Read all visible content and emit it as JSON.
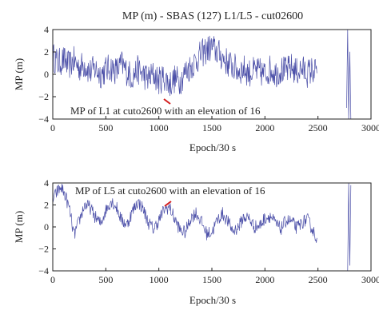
{
  "chart_data": [
    {
      "type": "line",
      "title": "MP (m) - SBAS (127) L1/L5 - cut02600",
      "xlabel": "Epoch/30 s",
      "ylabel": "MP (m)",
      "xlim": [
        0,
        3000
      ],
      "ylim": [
        -4,
        4
      ],
      "xticks": [
        "0",
        "500",
        "1000",
        "1500",
        "2000",
        "2500",
        "3000"
      ],
      "yticks": [
        "4",
        "2",
        "0",
        "−2",
        "−4"
      ],
      "grid": false,
      "annotation": "MP of L1 at cuto2600 with an elevation of 16",
      "series": [
        {
          "name": "",
          "color": "#4b4fa8",
          "x": [
            0,
            50,
            100,
            150,
            200,
            250,
            300,
            350,
            400,
            450,
            500,
            550,
            600,
            650,
            700,
            750,
            800,
            850,
            900,
            950,
            1000,
            1050,
            1100,
            1150,
            1200,
            1250,
            1300,
            1350,
            1400,
            1450,
            1500,
            1550,
            1600,
            1650,
            1700,
            1750,
            1800,
            1850,
            1900,
            1950,
            2000,
            2050,
            2100,
            2150,
            2200,
            2250,
            2300,
            2350,
            2400,
            2450,
            2490
          ],
          "y": [
            1.6,
            1.0,
            1.3,
            0.8,
            1.2,
            0.6,
            0.9,
            0.2,
            0.5,
            0.0,
            0.4,
            0.6,
            0.3,
            0.9,
            0.2,
            -0.2,
            0.4,
            0.0,
            -0.4,
            0.0,
            -0.6,
            -0.2,
            -0.9,
            -0.4,
            -0.6,
            0.2,
            0.7,
            1.2,
            1.8,
            2.2,
            2.4,
            2.0,
            1.5,
            1.0,
            0.7,
            0.3,
            0.5,
            0.1,
            0.3,
            0.2,
            0.0,
            0.5,
            0.1,
            0.4,
            0.3,
            0.6,
            0.2,
            0.5,
            0.1,
            0.4,
            0.1
          ],
          "spread": 1.3
        },
        {
          "name": "",
          "color": "#4b4fa8",
          "x": [
            2770,
            2780,
            2790,
            2800,
            2810
          ],
          "y": [
            -3.0,
            4.0,
            -4.0,
            2.0,
            -4.0
          ],
          "spread": 0
        }
      ]
    },
    {
      "type": "line",
      "title": "",
      "xlabel": "Epoch/30 s",
      "ylabel": "MP (m)",
      "xlim": [
        0,
        3000
      ],
      "ylim": [
        -4,
        4
      ],
      "xticks": [
        "0",
        "500",
        "1000",
        "1500",
        "2000",
        "2500",
        "3000"
      ],
      "yticks": [
        "4",
        "2",
        "0",
        "−2",
        "−4"
      ],
      "grid": false,
      "annotation": "MP of L5 at cuto2600 with an elevation of 16",
      "series": [
        {
          "name": "",
          "color": "#4b4fa8",
          "x": [
            0,
            40,
            80,
            120,
            160,
            200,
            250,
            300,
            350,
            400,
            450,
            500,
            550,
            600,
            650,
            700,
            750,
            800,
            850,
            900,
            950,
            1000,
            1050,
            1100,
            1150,
            1200,
            1250,
            1300,
            1350,
            1400,
            1450,
            1500,
            1550,
            1600,
            1650,
            1700,
            1750,
            1800,
            1850,
            1900,
            1950,
            2000,
            2050,
            2100,
            2150,
            2200,
            2250,
            2300,
            2350,
            2400,
            2450,
            2490
          ],
          "y": [
            2.4,
            3.2,
            3.6,
            2.8,
            1.5,
            -0.8,
            0.6,
            2.0,
            1.8,
            0.9,
            0.3,
            1.5,
            2.4,
            1.8,
            0.6,
            0.2,
            1.4,
            2.3,
            1.7,
            0.4,
            -0.2,
            0.6,
            1.6,
            1.8,
            0.7,
            -0.3,
            -0.5,
            0.8,
            1.3,
            0.5,
            -0.6,
            -0.5,
            0.6,
            1.2,
            0.5,
            -0.4,
            0.0,
            0.9,
            0.8,
            0.0,
            0.1,
            0.8,
            1.0,
            0.3,
            -0.2,
            0.6,
            0.5,
            -0.1,
            0.4,
            0.7,
            -0.3,
            -1.0
          ],
          "spread": 0.6
        },
        {
          "name": "",
          "color": "#4b4fa8",
          "x": [
            2780,
            2790,
            2800,
            2810
          ],
          "y": [
            -4.0,
            4.0,
            -3.5,
            3.8
          ],
          "spread": 0
        }
      ]
    }
  ]
}
